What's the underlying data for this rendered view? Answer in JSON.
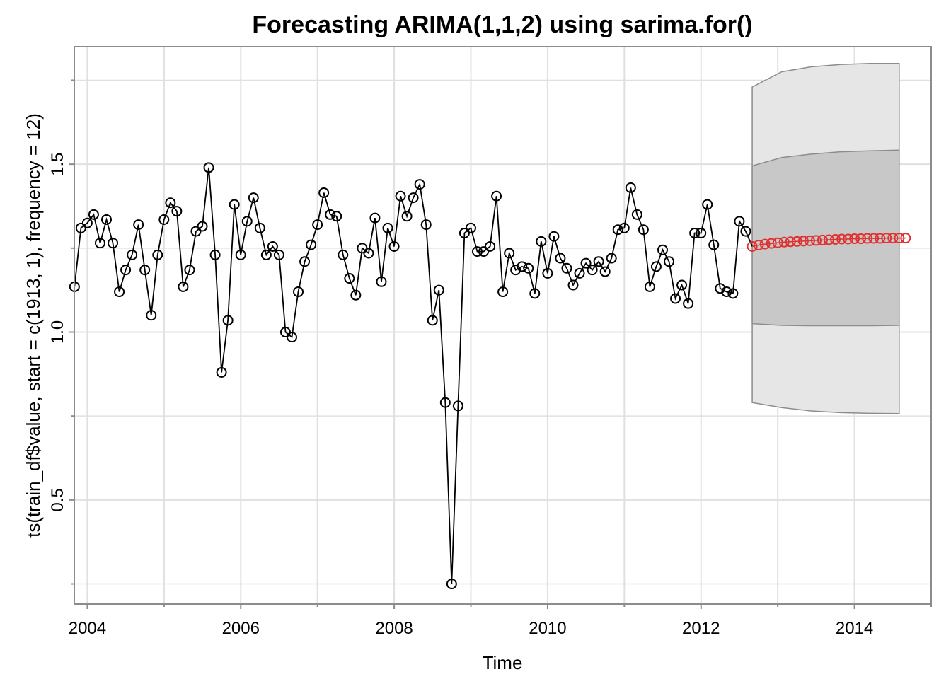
{
  "chart_data": {
    "type": "line",
    "title": "Forecasting ARIMA(1,1,2) using sarima.for()",
    "xlabel": "Time",
    "ylabel": "ts(train_df$value, start = c(1913, 1), frequency = 12)",
    "xlim": [
      2003.83,
      2015.0
    ],
    "ylim": [
      0.19,
      1.85
    ],
    "x_ticks": [
      2004,
      2006,
      2008,
      2010,
      2012,
      2014
    ],
    "y_ticks": [
      0.5,
      1.0,
      1.5
    ],
    "grid": true,
    "colors": {
      "observed": "#000000",
      "forecast": "#e03030",
      "band_80": "#c8c8c8",
      "band_95": "#e6e6e6",
      "band_edge": "#8c8c8c",
      "grid": "#e0e0e0",
      "frame": "#8c8c8c"
    },
    "series": [
      {
        "start": 2003.833,
        "step": 0.08333,
        "values": [
          1.135,
          1.31,
          1.325,
          1.35,
          1.265,
          1.335,
          1.265,
          1.12,
          1.185,
          1.23,
          1.32,
          1.185,
          1.05,
          1.23,
          1.335,
          1.385,
          1.36,
          1.135,
          1.185,
          1.3,
          1.315,
          1.49,
          1.23,
          0.88,
          1.035,
          1.38,
          1.23,
          1.33,
          1.4,
          1.31,
          1.23,
          1.255,
          1.23,
          1.0,
          0.985,
          1.12,
          1.21,
          1.26,
          1.32,
          1.415,
          1.35,
          1.345,
          1.23,
          1.16,
          1.11,
          1.25,
          1.235,
          1.34,
          1.15,
          1.31,
          1.255,
          1.405,
          1.345,
          1.4,
          1.44,
          1.32,
          1.035,
          1.125,
          0.79,
          0.25,
          0.78,
          1.295,
          1.31,
          1.24,
          1.24,
          1.255,
          1.405,
          1.12,
          1.235,
          1.185,
          1.195,
          1.19,
          1.115,
          1.27,
          1.175,
          1.285,
          1.22,
          1.19,
          1.14,
          1.175,
          1.205,
          1.185,
          1.21,
          1.18,
          1.22,
          1.305,
          1.31,
          1.43,
          1.35,
          1.305,
          1.135,
          1.195,
          1.245,
          1.21,
          1.1,
          1.14,
          1.085,
          1.295,
          1.295,
          1.38,
          1.26,
          1.13,
          1.12,
          1.115,
          1.33,
          1.3
        ]
      },
      {
        "start": 2012.667,
        "step": 0.08333,
        "values": [
          1.255,
          1.259,
          1.262,
          1.264,
          1.266,
          1.268,
          1.269,
          1.27,
          1.271,
          1.272,
          1.273,
          1.274,
          1.275,
          1.276,
          1.277,
          1.277,
          1.278,
          1.278,
          1.279,
          1.279,
          1.279,
          1.28,
          1.28,
          1.28,
          1.28
        ]
      }
    ],
    "bands": {
      "start": 2012.667,
      "end": 2014.583,
      "lower_95": [
        0.79,
        0.775,
        0.765,
        0.76,
        0.758,
        0.757
      ],
      "upper_95": [
        1.73,
        1.775,
        1.79,
        1.797,
        1.8,
        1.8
      ],
      "lower_80": [
        1.025,
        1.02,
        1.019,
        1.019,
        1.019,
        1.02
      ],
      "upper_80": [
        1.495,
        1.52,
        1.53,
        1.537,
        1.54,
        1.542
      ]
    }
  }
}
